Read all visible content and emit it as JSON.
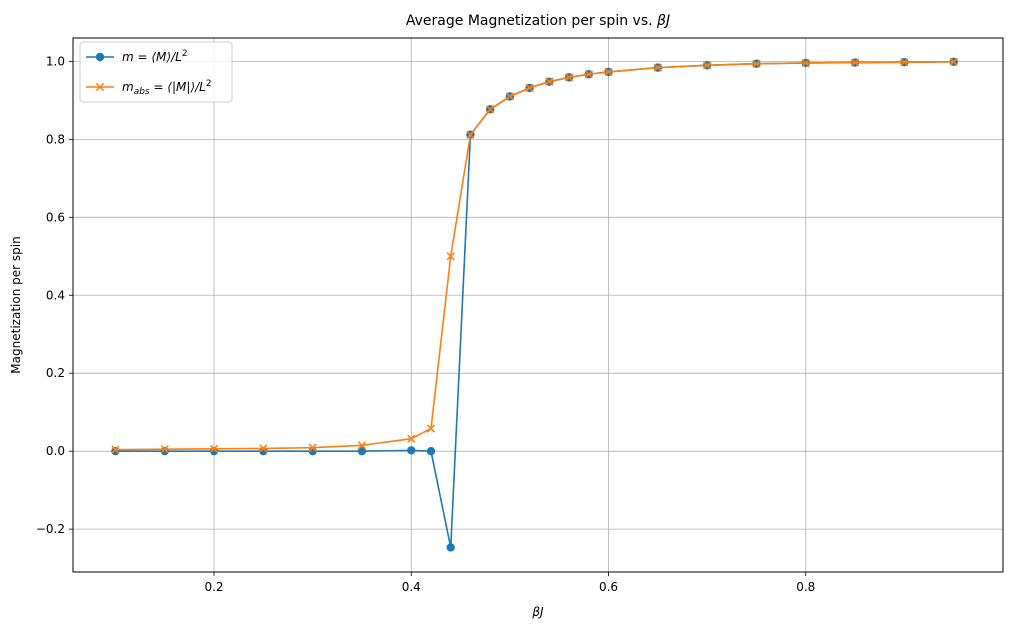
{
  "chart_data": {
    "type": "line",
    "title": "Average Magnetization per spin vs. βJ",
    "title_parts": {
      "text": "Average Magnetization per spin vs. ",
      "symbol": "βJ"
    },
    "xlabel": "βJ",
    "ylabel": "Magnetization per spin",
    "xlim": [
      0.057,
      1.0
    ],
    "ylim": [
      -0.31,
      1.06
    ],
    "xticks": [
      0.2,
      0.4,
      0.6,
      0.8
    ],
    "xtick_labels": [
      "0.2",
      "0.4",
      "0.6",
      "0.8"
    ],
    "yticks": [
      -0.2,
      0.0,
      0.2,
      0.4,
      0.6,
      0.8,
      1.0
    ],
    "ytick_labels": [
      "−0.2",
      "0.0",
      "0.2",
      "0.4",
      "0.6",
      "0.8",
      "1.0"
    ],
    "grid": true,
    "legend_position": "top-left",
    "x": [
      0.1,
      0.15,
      0.2,
      0.25,
      0.3,
      0.35,
      0.4,
      0.42,
      0.44,
      0.46,
      0.48,
      0.5,
      0.52,
      0.54,
      0.56,
      0.58,
      0.6,
      0.65,
      0.7,
      0.75,
      0.8,
      0.85,
      0.9,
      0.95
    ],
    "series": [
      {
        "name": "m = ⟨M⟩/L²",
        "legend_parts": {
          "main": "m = ⟨M⟩/L",
          "sup": "2"
        },
        "color": "#1f77b4",
        "marker": "circle",
        "values": [
          0.0,
          0.0,
          0.0,
          0.0,
          0.0,
          0.0,
          0.002,
          0.0,
          -0.247,
          0.812,
          0.877,
          0.91,
          0.932,
          0.948,
          0.959,
          0.967,
          0.973,
          0.984,
          0.99,
          0.994,
          0.996,
          0.997,
          0.998,
          0.999
        ]
      },
      {
        "name": "m_abs = ⟨|M|⟩/L²",
        "legend_parts": {
          "main": "m",
          "sub": "abs",
          "rest": " = ⟨|M|⟩/L",
          "sup": "2"
        },
        "color": "#ff7f0e",
        "marker": "x",
        "values": [
          0.004,
          0.005,
          0.006,
          0.007,
          0.009,
          0.015,
          0.032,
          0.058,
          0.5,
          0.812,
          0.877,
          0.91,
          0.932,
          0.948,
          0.959,
          0.967,
          0.973,
          0.984,
          0.99,
          0.994,
          0.996,
          0.997,
          0.998,
          0.999
        ]
      }
    ]
  }
}
